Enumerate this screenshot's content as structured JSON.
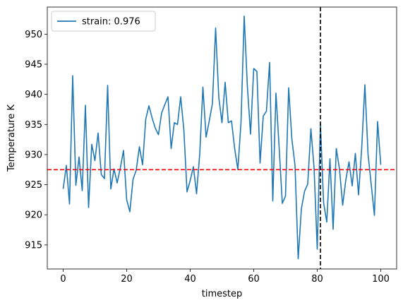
{
  "chart_data": {
    "type": "line",
    "title": "",
    "xlabel": "timestep",
    "ylabel": "Temperature K",
    "xlim": [
      -5,
      105
    ],
    "ylim": [
      911,
      954.5
    ],
    "xticks": [
      0,
      20,
      40,
      60,
      80,
      100
    ],
    "yticks": [
      915,
      920,
      925,
      930,
      935,
      940,
      945,
      950
    ],
    "grid": false,
    "legend_position": "top-left",
    "series": [
      {
        "name": "strain: 0.976",
        "color": "#1f77b4",
        "x": [
          0,
          1,
          2,
          3,
          4,
          5,
          6,
          7,
          8,
          9,
          10,
          11,
          12,
          13,
          14,
          15,
          16,
          17,
          18,
          19,
          20,
          21,
          22,
          23,
          24,
          25,
          26,
          27,
          28,
          29,
          30,
          31,
          32,
          33,
          34,
          35,
          36,
          37,
          38,
          39,
          40,
          41,
          42,
          43,
          44,
          45,
          46,
          47,
          48,
          49,
          50,
          51,
          52,
          53,
          54,
          55,
          56,
          57,
          58,
          59,
          60,
          61,
          62,
          63,
          64,
          65,
          66,
          67,
          68,
          69,
          70,
          71,
          72,
          73,
          74,
          75,
          76,
          77,
          78,
          79,
          80,
          81,
          82,
          83,
          84,
          85,
          86,
          87,
          88,
          89,
          90,
          91,
          92,
          93,
          94,
          95,
          96,
          97,
          98,
          99,
          100
        ],
        "values": [
          924.3,
          928.2,
          921.8,
          943.1,
          924.9,
          929.6,
          924.0,
          938.2,
          921.2,
          931.7,
          929.0,
          933.6,
          926.7,
          926.0,
          941.5,
          924.3,
          927.6,
          925.3,
          927.8,
          930.7,
          922.5,
          920.5,
          925.9,
          927.4,
          931.3,
          928.3,
          935.9,
          938.1,
          936.1,
          934.4,
          933.3,
          936.9,
          938.3,
          939.6,
          931.0,
          935.3,
          935.0,
          939.6,
          934.1,
          923.8,
          925.7,
          928.0,
          923.5,
          930.1,
          941.2,
          932.9,
          935.6,
          938.5,
          951.0,
          939.5,
          935.3,
          942.0,
          935.3,
          935.6,
          931.0,
          927.5,
          935.4,
          953.0,
          941.3,
          933.4,
          944.3,
          943.8,
          928.6,
          936.4,
          937.2,
          945.3,
          922.3,
          940.2,
          931.2,
          921.9,
          923.1,
          941.1,
          932.6,
          928.2,
          912.7,
          921.0,
          923.9,
          925.1,
          934.3,
          927.8,
          914.3,
          935.1,
          922.0,
          918.8,
          929.3,
          917.6,
          931.0,
          927.6,
          921.6,
          925.8,
          928.8,
          924.8,
          930.2,
          923.3,
          931.1,
          941.6,
          930.0,
          925.0,
          919.9,
          935.5,
          928.3
        ]
      }
    ],
    "reference_lines": [
      {
        "orientation": "horizontal",
        "value": 927.5,
        "color": "#ff0000",
        "style": "dashed"
      },
      {
        "orientation": "vertical",
        "value": 81,
        "color": "#000000",
        "style": "dashed"
      }
    ]
  }
}
